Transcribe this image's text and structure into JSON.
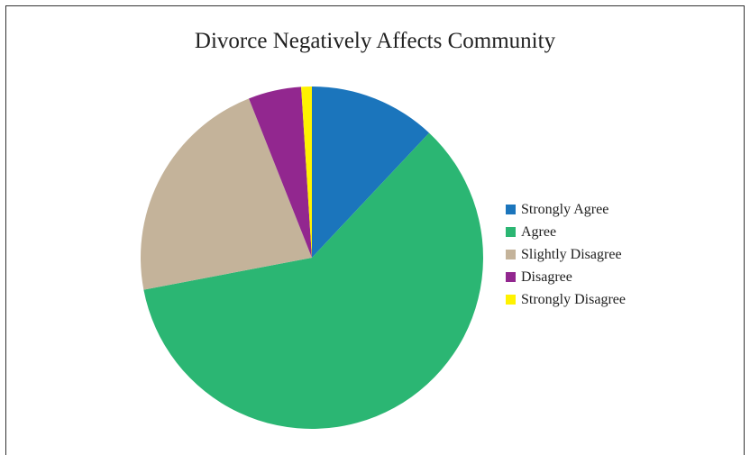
{
  "chart_data": {
    "type": "pie",
    "title": "Divorce Negatively Affects Community",
    "legend_position": "right",
    "series": [
      {
        "name": "Strongly Agree",
        "value": 12,
        "color": "#1B75BC"
      },
      {
        "name": "Agree",
        "value": 60,
        "color": "#2BB673"
      },
      {
        "name": "Slightly Disagree",
        "value": 22,
        "color": "#C4B39A"
      },
      {
        "name": "Disagree",
        "value": 5,
        "color": "#92278F"
      },
      {
        "name": "Strongly Disagree",
        "value": 1,
        "color": "#FFF200"
      }
    ]
  }
}
